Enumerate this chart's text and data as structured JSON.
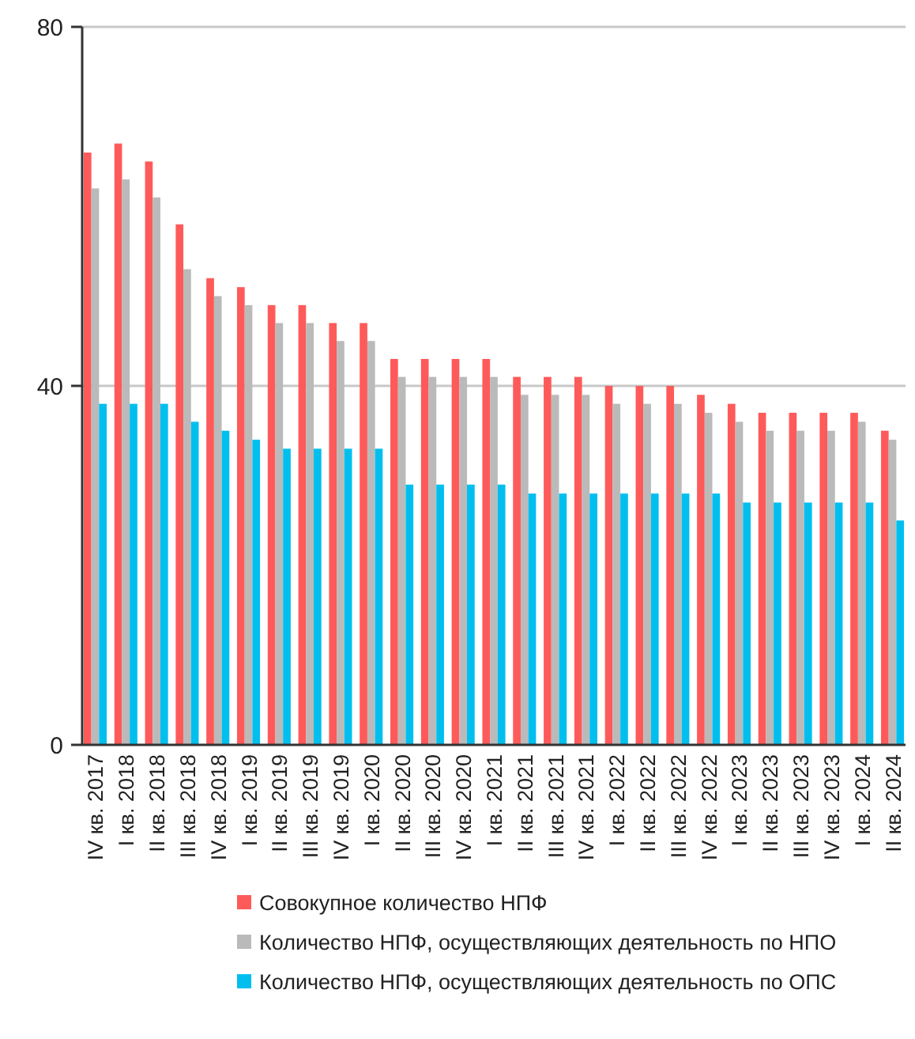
{
  "chart_data": {
    "type": "bar",
    "categories": [
      "IV кв. 2017",
      "I кв. 2018",
      "II кв. 2018",
      "III кв. 2018",
      "IV кв. 2018",
      "I кв. 2019",
      "II кв. 2019",
      "III кв. 2019",
      "IV кв. 2019",
      "I кв. 2020",
      "II кв. 2020",
      "III кв. 2020",
      "IV кв. 2020",
      "I кв. 2021",
      "II кв. 2021",
      "III кв. 2021",
      "IV кв. 2021",
      "I кв. 2022",
      "II кв. 2022",
      "III кв. 2022",
      "IV кв. 2022",
      "I кв. 2023",
      "II кв. 2023",
      "III кв. 2023",
      "IV кв. 2023",
      "I кв. 2024",
      "II кв. 2024"
    ],
    "series": [
      {
        "name": "Совокупное количество НПФ",
        "color": "#ff5a5a",
        "values": [
          66,
          67,
          65,
          58,
          52,
          51,
          49,
          49,
          47,
          47,
          43,
          43,
          43,
          43,
          41,
          41,
          41,
          40,
          40,
          40,
          39,
          38,
          37,
          37,
          37,
          37,
          35
        ]
      },
      {
        "name": "Количество НПФ, осуществляющих деятельность по НПО",
        "color": "#bababa",
        "values": [
          62,
          63,
          61,
          53,
          50,
          49,
          47,
          47,
          45,
          45,
          41,
          41,
          41,
          41,
          39,
          39,
          39,
          38,
          38,
          38,
          37,
          36,
          35,
          35,
          35,
          36,
          34
        ]
      },
      {
        "name": "Количество НПФ, осуществляющих деятельность по ОПС",
        "color": "#00bfef",
        "values": [
          38,
          38,
          38,
          36,
          35,
          34,
          33,
          33,
          33,
          33,
          29,
          29,
          29,
          29,
          28,
          28,
          28,
          28,
          28,
          28,
          28,
          27,
          27,
          27,
          27,
          27,
          25
        ]
      }
    ],
    "ylim": [
      0,
      80
    ],
    "yticks": [
      0,
      40,
      80
    ],
    "grid": "y",
    "legend": "bottom"
  }
}
